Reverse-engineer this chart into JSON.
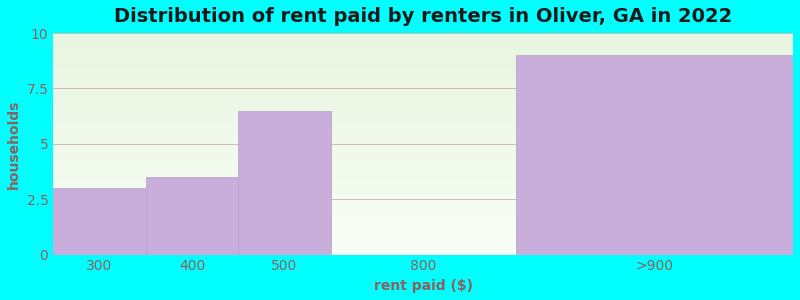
{
  "categories": [
    "300",
    "400",
    "500",
    "800",
    ">900"
  ],
  "values": [
    3,
    3.5,
    6.5,
    0,
    9
  ],
  "bar_color": "#C9ADDA",
  "bar_edgecolor": "#b8a0cc",
  "title": "Distribution of rent paid by renters in Oliver, GA in 2022",
  "xlabel": "rent paid ($)",
  "ylabel": "households",
  "ylim": [
    0,
    10
  ],
  "yticks": [
    0,
    2.5,
    5,
    7.5,
    10
  ],
  "bg_outer": "#00FFFF",
  "bg_plot_top": "#e8f5e0",
  "bg_plot_bottom": "#f8fdf5",
  "title_fontsize": 14,
  "label_fontsize": 10,
  "tick_color": "#8B6060",
  "label_color": "#8B6060",
  "bar_left_edges": [
    0,
    1,
    2,
    3,
    5
  ],
  "bar_widths": [
    1,
    1,
    1,
    2,
    3
  ]
}
